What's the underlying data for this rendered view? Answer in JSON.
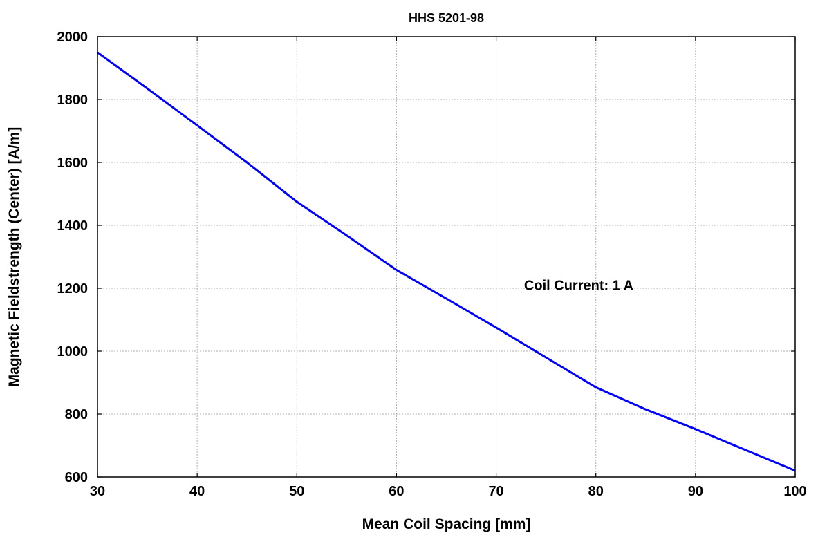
{
  "chart_data": {
    "type": "line",
    "title": "HHS 5201-98",
    "xlabel": "Mean Coil Spacing [mm]",
    "ylabel": "Magnetic Fieldstrength (Center) [A/m]",
    "xlim": [
      30,
      100
    ],
    "ylim": [
      600,
      2000
    ],
    "x_ticks": [
      30,
      40,
      50,
      60,
      70,
      80,
      90,
      100
    ],
    "y_ticks": [
      600,
      800,
      1000,
      1200,
      1400,
      1600,
      1800,
      2000
    ],
    "grid": true,
    "series": [
      {
        "color": "#0000ff",
        "x": [
          30,
          35,
          40,
          45,
          50,
          55,
          60,
          65,
          70,
          75,
          80,
          85,
          90,
          95,
          100
        ],
        "y": [
          1950,
          1835,
          1718,
          1600,
          1475,
          1368,
          1258,
          1167,
          1075,
          980,
          885,
          815,
          752,
          686,
          620
        ]
      }
    ],
    "annotations": [
      {
        "text": "Coil Current: 1 A",
        "x": 72.8,
        "y": 1195
      }
    ]
  }
}
